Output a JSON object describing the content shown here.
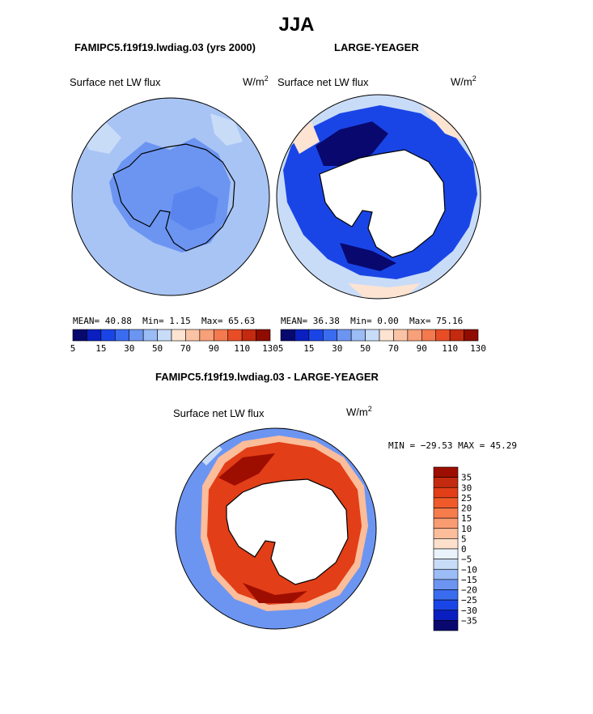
{
  "title": "JJA",
  "panels": [
    {
      "id": "model",
      "header": "FAMIPC5.f19f19.lwdiag.03 (yrs 2000)",
      "variable": "Surface net LW flux",
      "units": "W/m",
      "units_exp": "2",
      "mean_label": "MEAN=",
      "mean": "40.88",
      "min_label": "Min=",
      "min": "1.15",
      "max_label": "Max=",
      "max": "65.63"
    },
    {
      "id": "obs",
      "header": "LARGE-YEAGER",
      "variable": "Surface net LW flux",
      "units": "W/m",
      "units_exp": "2",
      "mean_label": "MEAN=",
      "mean": "36.38",
      "min_label": "Min=",
      "min": "0.00",
      "max_label": "Max=",
      "max": "75.16"
    }
  ],
  "difference": {
    "header": "FAMIPC5.f19f19.lwdiag.03 - LARGE-YEAGER",
    "variable": "Surface net LW flux",
    "units": "W/m",
    "units_exp": "2",
    "minmax_text": "MIN = −29.53 MAX =  45.29"
  },
  "chart_data": [
    {
      "type": "heatmap",
      "projection": "south-polar-stereographic",
      "title": "FAMIPC5.f19f19.lwdiag.03 (yrs 2000)",
      "variable": "Surface net LW flux",
      "units": "W/m2",
      "season": "JJA",
      "stats": {
        "mean": 40.88,
        "min": 1.15,
        "max": 65.63
      },
      "colorbar_ticks": [
        "5",
        "15",
        "30",
        "50",
        "70",
        "90",
        "110",
        "130"
      ],
      "colorbar_colors": [
        "#08086e",
        "#0a1fc0",
        "#1a45e6",
        "#3a6cf0",
        "#6c95f2",
        "#9bbcf5",
        "#c8dcf8",
        "#fde3d2",
        "#fbc3a5",
        "#f7a07a",
        "#f47a4e",
        "#e84d26",
        "#c42a10",
        "#8e0c00"
      ]
    },
    {
      "type": "heatmap",
      "projection": "south-polar-stereographic",
      "title": "LARGE-YEAGER",
      "variable": "Surface net LW flux",
      "units": "W/m2",
      "season": "JJA",
      "stats": {
        "mean": 36.38,
        "min": 0.0,
        "max": 75.16
      },
      "colorbar_ticks": [
        "5",
        "15",
        "30",
        "50",
        "70",
        "90",
        "110",
        "130"
      ],
      "colorbar_colors": [
        "#08086e",
        "#0a1fc0",
        "#1a45e6",
        "#3a6cf0",
        "#6c95f2",
        "#9bbcf5",
        "#c8dcf8",
        "#fde3d2",
        "#fbc3a5",
        "#f7a07a",
        "#f47a4e",
        "#e84d26",
        "#c42a10",
        "#8e0c00"
      ]
    },
    {
      "type": "heatmap",
      "projection": "south-polar-stereographic",
      "title": "FAMIPC5.f19f19.lwdiag.03 - LARGE-YEAGER",
      "variable": "Surface net LW flux",
      "units": "W/m2",
      "stats": {
        "min": -29.53,
        "max": 45.29
      },
      "colorbar_ticks": [
        "35",
        "30",
        "25",
        "20",
        "15",
        "10",
        "5",
        "0",
        "−5",
        "−10",
        "−15",
        "−20",
        "−25",
        "−30",
        "−35"
      ],
      "colorbar_colors": [
        "#9e0e00",
        "#c42a10",
        "#e23e18",
        "#f05a2a",
        "#f77c4c",
        "#f99c72",
        "#fbbd9a",
        "#fde0cc",
        "#eaf2fb",
        "#c8dcf8",
        "#9bbcf5",
        "#6c95f2",
        "#3a6cf0",
        "#1a45e6",
        "#0a1fc0",
        "#08086e"
      ]
    }
  ]
}
